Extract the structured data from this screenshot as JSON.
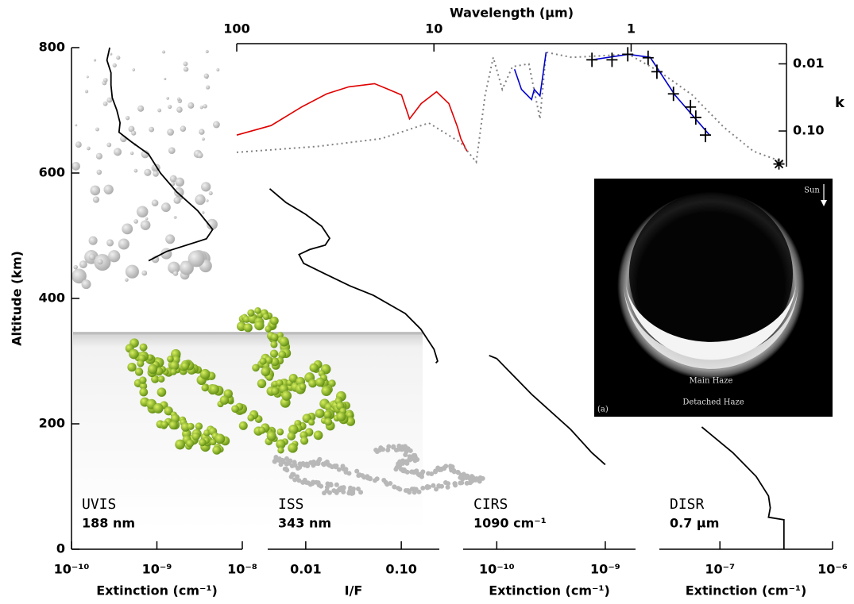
{
  "chart_data": [
    {
      "type": "line",
      "xlabel": "Wavelength (μm)",
      "ylabel": "k",
      "xscale": "log",
      "yscale": "log",
      "xlim": [
        100,
        0.163
      ],
      "xticks": [
        100,
        10,
        1
      ],
      "ylim": [
        0.005,
        0.34
      ],
      "yticks": [
        0.01,
        {
          "value": 0.1,
          "label": "0.10"
        }
      ],
      "series": [
        {
          "color": "#e00000",
          "style": "solid",
          "x": [
            100,
            67,
            47,
            35,
            27,
            20,
            17,
            14.6,
            13.3,
            11.6,
            9.7,
            8.4,
            7.6,
            7.3,
            6.8
          ],
          "values": [
            0.115,
            0.083,
            0.044,
            0.028,
            0.022,
            0.0197,
            0.024,
            0.029,
            0.066,
            0.039,
            0.026,
            0.039,
            0.087,
            0.13,
            0.2
          ]
        },
        {
          "color": "#808080",
          "style": "dotted",
          "x": [
            100,
            39,
            18.5,
            10.6,
            7.3,
            6.1,
            5.5,
            5,
            4.5,
            4,
            3.3,
            2.9,
            2.7,
            2.0,
            1.03,
            0.72,
            0.49,
            0.34,
            0.24,
            0.17
          ],
          "values": [
            0.208,
            0.17,
            0.13,
            0.076,
            0.15,
            0.29,
            0.029,
            0.008,
            0.024,
            0.011,
            0.01,
            0.066,
            0.0067,
            0.008,
            0.0072,
            0.013,
            0.029,
            0.087,
            0.2,
            0.29
          ]
        },
        {
          "color": "#0000d0",
          "style": "solid",
          "x": [
            3.9,
            3.6,
            3.2,
            3.1,
            2.9,
            2.7
          ],
          "values": [
            0.012,
            0.024,
            0.034,
            0.024,
            0.03,
            0.0067
          ]
        },
        {
          "color": "#0000d0",
          "style": "solid",
          "x": [
            1.57,
            1.03,
            0.8,
            0.6,
            0.4
          ],
          "values": [
            0.0087,
            0.0072,
            0.008,
            0.029,
            0.115
          ]
        },
        {
          "color": "#000000",
          "marker": "plus",
          "x": [
            1.58,
            1.25,
            1.04,
            0.82,
            0.74,
            0.61,
            0.5,
            0.47,
            0.42
          ],
          "values": [
            0.0087,
            0.0087,
            0.0072,
            0.0081,
            0.0131,
            0.028,
            0.044,
            0.063,
            0.115
          ]
        },
        {
          "color": "#000000",
          "marker": "asterisk",
          "x": [
            0.178
          ],
          "values": [
            0.31
          ]
        }
      ]
    },
    {
      "type": "line",
      "label": "UVIS",
      "sublabel": "188 nm",
      "xlabel": "Extinction (cm⁻¹)",
      "xscale": "log",
      "xlim": [
        1e-10,
        1e-08
      ],
      "xticks": [
        {
          "value": 1e-10,
          "label": "10⁻¹⁰"
        },
        {
          "value": 1e-09,
          "label": "10⁻⁹"
        },
        {
          "value": 1e-08,
          "label": "10⁻⁸"
        }
      ],
      "ylabel": "Altitude (km)",
      "ylim": [
        0,
        800
      ],
      "yticks": [
        0,
        200,
        400,
        600,
        800
      ],
      "color": "#000000",
      "x": [
        2.8e-10,
        2.6e-10,
        2.9e-10,
        2.9e-10,
        3e-10,
        3.4e-10,
        3.7e-10,
        3.6e-10,
        5e-10,
        8e-10,
        1.1e-09,
        1.7e-09,
        3e-09,
        4.5e-09,
        3.8e-09,
        1.3e-09,
        8e-10
      ],
      "values": [
        800,
        780,
        760,
        740,
        720,
        700,
        680,
        665,
        650,
        630,
        600,
        570,
        540,
        510,
        495,
        475,
        460
      ]
    },
    {
      "type": "line",
      "label": "ISS",
      "sublabel": "343 nm",
      "xlabel": "I/F",
      "xscale": "log",
      "xlim": [
        0.004,
        0.25
      ],
      "xticks": [
        0.01,
        {
          "value": 0.1,
          "label": "0.10"
        }
      ],
      "color": "#000000",
      "x": [
        0.0042,
        0.0062,
        0.01,
        0.0147,
        0.0178,
        0.016,
        0.011,
        0.0085,
        0.0095,
        0.016,
        0.029,
        0.051,
        0.11,
        0.16,
        0.22,
        0.24,
        0.23
      ],
      "values": [
        575,
        553,
        534,
        515,
        496,
        485,
        478,
        470,
        456,
        439,
        420,
        405,
        376,
        351,
        319,
        300,
        297
      ]
    },
    {
      "type": "line",
      "label": "CIRS",
      "sublabel": "1090 cm⁻¹",
      "xlabel": "Extinction (cm⁻¹)",
      "xscale": "log",
      "xlim": [
        4.9e-11,
        1.9e-09
      ],
      "xticks": [
        {
          "value": 1e-10,
          "label": "10⁻¹⁰"
        },
        {
          "value": 1e-09,
          "label": "10⁻⁹"
        }
      ],
      "color": "#000000",
      "x": [
        8.5e-11,
        1e-10,
        2.1e-10,
        4.8e-10,
        7.5e-10,
        1e-09
      ],
      "values": [
        309,
        304,
        247,
        191,
        154,
        135
      ]
    },
    {
      "type": "line",
      "label": "DISR",
      "sublabel": "0.7 μm",
      "xlabel": "Extinction (cm⁻¹)",
      "xscale": "log",
      "xlim": [
        2.9e-08,
        1e-06
      ],
      "xticks": [
        {
          "value": 1e-07,
          "label": "10⁻⁷"
        },
        {
          "value": 1e-06,
          "label": "10⁻⁶"
        }
      ],
      "color": "#000000",
      "x": [
        6.9e-08,
        1.3e-07,
        2.1e-07,
        2.7e-07,
        2.8e-07,
        2.7e-07,
        3.7e-07,
        3.7e-07
      ],
      "values": [
        195,
        154,
        116,
        85,
        66,
        51,
        47,
        0
      ]
    }
  ],
  "inset": {
    "sun": "Sun",
    "main_haze": "Main Haze",
    "detached_haze": "Detached Haze",
    "panel": "(a)"
  }
}
